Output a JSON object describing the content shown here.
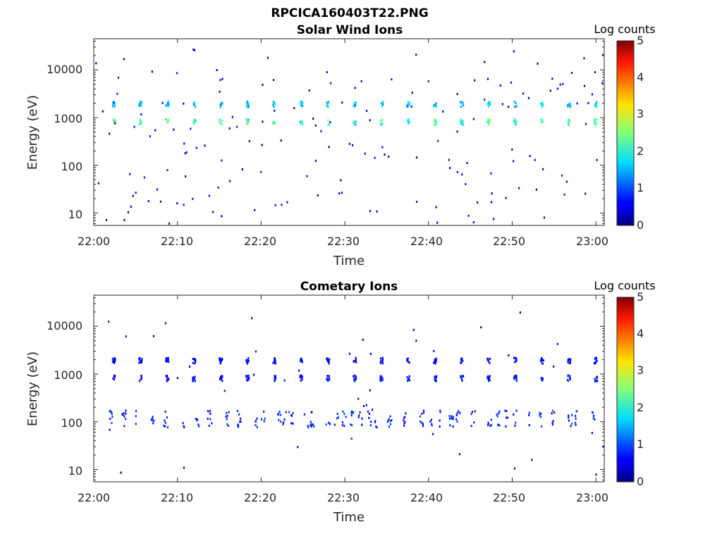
{
  "figure_title": "RPCICA160403T22.PNG",
  "chart_data": [
    {
      "type": "heatmap",
      "title": "Solar Wind Ions",
      "xlabel": "Time",
      "ylabel": "Energy (eV)",
      "x_range": [
        "22:00",
        "23:01"
      ],
      "x_ticks": [
        "22:00",
        "22:10",
        "22:20",
        "22:30",
        "22:40",
        "22:50",
        "23:00"
      ],
      "y_scale": "log",
      "y_range": [
        5.5,
        45000
      ],
      "y_ticks": [
        10,
        100,
        1000,
        10000
      ],
      "y_tick_labels": [
        "10",
        "100",
        "1000",
        "10000"
      ],
      "colorbar": {
        "label": "Log counts",
        "range": [
          0,
          5
        ],
        "ticks": [
          "0",
          "1",
          "2",
          "3",
          "4",
          "5"
        ],
        "colormap": "jet"
      },
      "description_features": [
        {
          "time_min": 2.3,
          "energy_eV": 2000,
          "log_counts": 1.6,
          "period_min": 3.2
        },
        {
          "time_min": 2.3,
          "energy_eV": 850,
          "log_counts": 2.2,
          "period_min": 3.2
        }
      ]
    },
    {
      "type": "heatmap",
      "title": "Cometary Ions",
      "xlabel": "Time",
      "ylabel": "Energy (eV)",
      "x_range": [
        "22:00",
        "23:01"
      ],
      "x_ticks": [
        "22:00",
        "22:10",
        "22:20",
        "22:30",
        "22:40",
        "22:50",
        "23:00"
      ],
      "y_scale": "log",
      "y_range": [
        5.5,
        45000
      ],
      "y_ticks": [
        10,
        100,
        1000,
        10000
      ],
      "y_tick_labels": [
        "10",
        "100",
        "1000",
        "10000"
      ],
      "colorbar": {
        "label": "Log counts",
        "range": [
          0,
          5
        ],
        "ticks": [
          "0",
          "1",
          "2",
          "3",
          "4",
          "5"
        ],
        "colormap": "jet"
      },
      "description_features": [
        {
          "time_min": 2.3,
          "energy_eV": 2000,
          "log_counts": 0.6,
          "period_min": 3.2
        },
        {
          "time_min": 2.3,
          "energy_eV": 850,
          "log_counts": 0.7,
          "period_min": 3.2
        },
        {
          "time_min": 2.0,
          "energy_eV": 120,
          "log_counts": 0.8,
          "period_min": "irregular"
        }
      ]
    }
  ]
}
